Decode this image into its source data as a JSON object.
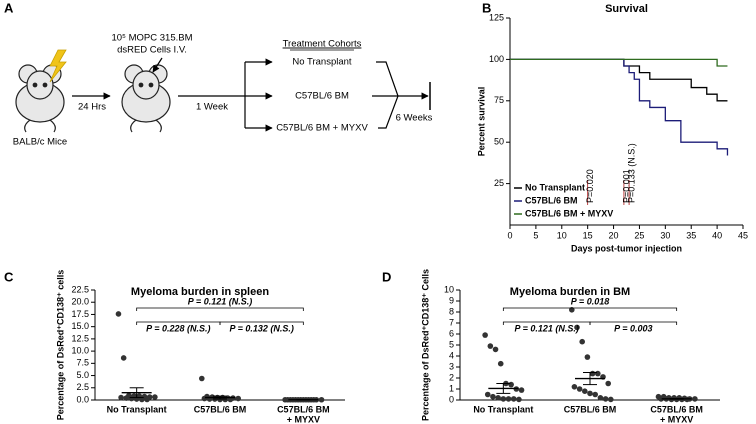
{
  "panel_labels": [
    "A",
    "B",
    "C",
    "D"
  ],
  "diagram": {
    "cells": [
      "10⁵ MOPC 315.BM",
      "dsRED Cells I.V."
    ],
    "mice": "BALB/c Mice",
    "step1": "24 Hrs",
    "step2": "1 Week",
    "cohorts_title": "Treatment Cohorts",
    "cohorts": [
      "No Transplant",
      "C57BL/6 BM",
      "C57BL/6 BM + MYXV"
    ],
    "step3": "6 Weeks"
  },
  "chart_data": [
    {
      "type": "step",
      "title": "Survival",
      "x_label": "Days post-tumor injection",
      "y_label": "Percent survival",
      "xlim": [
        0,
        45
      ],
      "xticks": [
        0,
        5,
        10,
        15,
        20,
        25,
        30,
        35,
        40,
        45
      ],
      "ylim": [
        0,
        125
      ],
      "yticks": [
        25,
        50,
        75,
        100,
        125
      ],
      "legend": "bottom-left",
      "series": [
        {
          "name": "No Transplant",
          "color": "#000000",
          "x": [
            0,
            22,
            25,
            27,
            35,
            38,
            40,
            42
          ],
          "values": [
            100,
            96,
            92,
            88,
            83,
            79,
            75,
            75
          ]
        },
        {
          "name": "C57BL/6 BM",
          "color": "#1c1c78",
          "x": [
            0,
            22,
            23,
            24,
            25,
            27,
            30,
            33,
            40,
            42
          ],
          "values": [
            100,
            96,
            92,
            88,
            75,
            71,
            63,
            50,
            46,
            42
          ]
        },
        {
          "name": "C57BL/6 BM + MYXV",
          "color": "#2e6b1e",
          "x": [
            0,
            40,
            42
          ],
          "values": [
            100,
            96,
            96
          ]
        }
      ],
      "annotation_color": "#b01818",
      "annotations": [
        {
          "text": "P=0.020",
          "x": 15
        },
        {
          "text": "P=0.001",
          "x": 22
        },
        {
          "text": "P=0.133 (N.S.)",
          "x": 23
        }
      ]
    },
    {
      "type": "dot",
      "title": "Myeloma burden in spleen",
      "y_label": "Percentage of DsRed⁺CD138⁺ cells",
      "ylim": [
        0,
        22.5
      ],
      "yticks": [
        {
          "value": 0,
          "label": "0.0"
        },
        2.5,
        {
          "value": 5,
          "label": "5.0"
        },
        7.5,
        {
          "value": 10,
          "label": "10.0"
        },
        12.5,
        {
          "value": 15,
          "label": "15.0"
        },
        17.5,
        {
          "value": 20,
          "label": "20.0"
        },
        22.5
      ],
      "categories": [
        [
          "No Transplant"
        ],
        [
          "C57BL/6 BM"
        ],
        [
          "C57BL/6 BM",
          "+ MYXV"
        ]
      ],
      "color": "#333333",
      "groups": [
        {
          "points": [
            17.6,
            8.6,
            0.9,
            0.8,
            0.8,
            0.7,
            0.6,
            0.6,
            0.5,
            0.4,
            0.3,
            0.2,
            0.1,
            0.1
          ],
          "mean": 1.5,
          "sem": 1.0
        },
        {
          "points": [
            4.4,
            0.7,
            0.6,
            0.5,
            0.5,
            0.4,
            0.4,
            0.3,
            0.3,
            0.2,
            0.2,
            0.1,
            0.1,
            0.1
          ],
          "mean": 0.5,
          "sem": 0.3
        },
        {
          "points": [
            0.05,
            0.05,
            0.05,
            0.05,
            0.05,
            0.05,
            0.05,
            0.05,
            0.05,
            0.05,
            0.05,
            0.05,
            0.05,
            0.05
          ],
          "mean": 0.05,
          "sem": 0.02
        }
      ],
      "annotations": [
        {
          "text": "P = 0.121 (N.S.)",
          "from": 0,
          "to": 2
        },
        {
          "text": "P = 0.228 (N.S.)",
          "from": 0,
          "to": 1
        },
        {
          "text": "P = 0.132 (N.S.)",
          "from": 1,
          "to": 2
        }
      ]
    },
    {
      "type": "dot",
      "title": "Myeloma burden in BM",
      "y_label": "Percentage of DsRed⁺CD138⁺ Cells",
      "ylim": [
        0,
        10
      ],
      "yticks": [
        0,
        1,
        2,
        3,
        4,
        5,
        6,
        7,
        8,
        9,
        10
      ],
      "categories": [
        [
          "No Transplant"
        ],
        [
          "C57BL/6 BM"
        ],
        [
          "C57BL/6 BM",
          "+ MYXV"
        ]
      ],
      "color": "#333333",
      "groups": [
        {
          "points": [
            5.9,
            4.9,
            4.6,
            3.3,
            1.5,
            1.4,
            1.0,
            0.9,
            0.5,
            0.3,
            0.2,
            0.1,
            0.1,
            0.1,
            0.05
          ],
          "mean": 1.05,
          "sem": 0.45
        },
        {
          "points": [
            8.2,
            6.6,
            5.3,
            3.9,
            2.4,
            2.4,
            2.1,
            1.5,
            1.2,
            1.0,
            0.8,
            0.6,
            0.5,
            0.2,
            0.1,
            0.05
          ],
          "mean": 1.95,
          "sem": 0.55
        },
        {
          "points": [
            0.3,
            0.3,
            0.2,
            0.2,
            0.2,
            0.15,
            0.1,
            0.1,
            0.1,
            0.1,
            0.05,
            0.05,
            0.05,
            0.05
          ],
          "mean": 0.1,
          "sem": 0.03
        }
      ],
      "annotations": [
        {
          "text": "P = 0.018",
          "from": 0,
          "to": 2
        },
        {
          "text": "P = 0.121 (N.S.)",
          "from": 0,
          "to": 1
        },
        {
          "text": "P = 0.003",
          "from": 1,
          "to": 2
        }
      ]
    }
  ]
}
